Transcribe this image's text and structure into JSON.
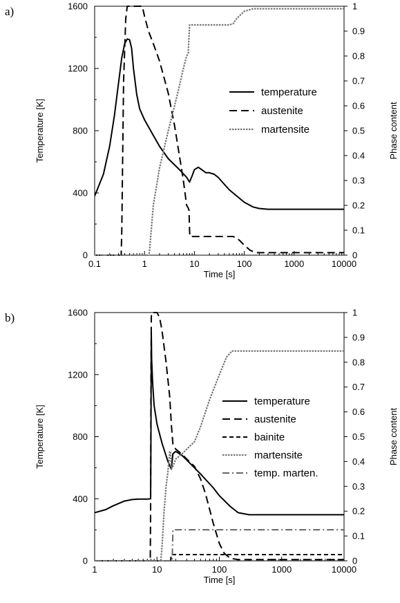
{
  "chart_data": [
    {
      "type": "line",
      "panel_label": "a)",
      "xlabel": "Time [s]",
      "ylabel": "Temperature [K]",
      "y2label": "Phase content",
      "xscale": "log",
      "xlim": [
        0.1,
        10000
      ],
      "ylim": [
        0,
        1600
      ],
      "y2lim": [
        0,
        1
      ],
      "x_ticks": [
        "0.1",
        "1",
        "10",
        "100",
        "1000",
        "10000"
      ],
      "y_ticks": [
        "0",
        "400",
        "800",
        "1200",
        "1600"
      ],
      "y2_ticks": [
        "0",
        "0.1",
        "0.2",
        "0.3",
        "0.4",
        "0.5",
        "0.6",
        "0.7",
        "0.8",
        "0.9",
        "1"
      ],
      "legend_position": "center-right",
      "series": [
        {
          "name": "temperature",
          "axis": "left",
          "style": "solid",
          "color": "#000000",
          "x": [
            0.1,
            0.15,
            0.2,
            0.25,
            0.3,
            0.35,
            0.4,
            0.45,
            0.5,
            0.55,
            0.6,
            0.7,
            0.8,
            1,
            1.5,
            2,
            3,
            5,
            7,
            8,
            9,
            10,
            12,
            14,
            17,
            20,
            25,
            30,
            50,
            100,
            150,
            200,
            300,
            500,
            1000,
            10000
          ],
          "y": [
            380,
            520,
            700,
            900,
            1100,
            1270,
            1360,
            1390,
            1385,
            1330,
            1200,
            1030,
            940,
            870,
            770,
            700,
            620,
            550,
            500,
            470,
            510,
            550,
            565,
            550,
            530,
            530,
            520,
            500,
            420,
            340,
            310,
            300,
            295,
            295,
            295,
            295
          ]
        },
        {
          "name": "austenite",
          "axis": "right",
          "style": "dashed",
          "color": "#000000",
          "x": [
            0.1,
            0.34,
            0.35,
            0.38,
            0.42,
            0.45,
            0.9,
            1,
            1.2,
            1.5,
            2,
            3,
            4,
            5,
            6,
            7,
            7.5,
            7.8,
            8,
            8.1,
            20,
            60,
            80,
            100,
            130,
            170,
            10000
          ],
          "y": [
            0,
            0,
            0.1,
            0.7,
            0.95,
            1,
            1,
            0.96,
            0.9,
            0.85,
            0.78,
            0.65,
            0.52,
            0.4,
            0.3,
            0.2,
            0.19,
            0.18,
            0.1,
            0.075,
            0.075,
            0.075,
            0.06,
            0.04,
            0.02,
            0.01,
            0.01
          ]
        },
        {
          "name": "martensite",
          "axis": "right",
          "style": "dotted",
          "color": "#777777",
          "x": [
            0.1,
            1.2,
            1.25,
            1.5,
            2,
            3,
            4,
            5,
            6,
            7,
            7.5,
            8,
            9,
            20,
            50,
            60,
            70,
            100,
            150,
            10000
          ],
          "y": [
            0,
            0,
            0.01,
            0.2,
            0.35,
            0.5,
            0.6,
            0.68,
            0.75,
            0.8,
            0.81,
            0.925,
            0.925,
            0.925,
            0.925,
            0.93,
            0.95,
            0.98,
            0.99,
            0.99
          ]
        }
      ]
    },
    {
      "type": "line",
      "panel_label": "b)",
      "xlabel": "Time [s]",
      "ylabel": "Temperature [K]",
      "y2label": "Phase content",
      "xscale": "log",
      "xlim": [
        1,
        10000
      ],
      "ylim": [
        0,
        1600
      ],
      "y2lim": [
        0,
        1
      ],
      "x_ticks": [
        "1",
        "10",
        "100",
        "1000",
        "10000"
      ],
      "y_ticks": [
        "0",
        "400",
        "800",
        "1200",
        "1600"
      ],
      "y2_ticks": [
        "0",
        "0.1",
        "0.2",
        "0.3",
        "0.4",
        "0.5",
        "0.6",
        "0.7",
        "0.8",
        "0.9",
        "1"
      ],
      "legend_position": "center-right",
      "series": [
        {
          "name": "temperature",
          "axis": "left",
          "style": "solid",
          "color": "#000000",
          "x": [
            1,
            1.5,
            2,
            3,
            4,
            5,
            6,
            7,
            7.9,
            8,
            8.1,
            8.2,
            8.5,
            9,
            10,
            12,
            15,
            17,
            18,
            20,
            25,
            30,
            50,
            80,
            100,
            150,
            200,
            300,
            1000,
            10000
          ],
          "y": [
            310,
            330,
            355,
            385,
            395,
            398,
            398,
            398,
            400,
            800,
            1470,
            1300,
            1150,
            1000,
            880,
            760,
            640,
            590,
            690,
            705,
            680,
            650,
            560,
            470,
            420,
            350,
            310,
            297,
            297,
            297
          ]
        },
        {
          "name": "austenite",
          "axis": "right",
          "style": "longdash",
          "color": "#000000",
          "x": [
            1,
            7.8,
            7.9,
            8,
            8.1,
            8.2,
            9,
            10,
            11,
            12,
            14,
            16,
            17,
            18,
            20,
            25,
            30,
            40,
            50,
            60,
            80,
            100,
            120,
            150,
            200,
            10000
          ],
          "y": [
            0,
            0,
            0.2,
            0.7,
            0.98,
            1,
            1,
            1,
            0.98,
            0.93,
            0.8,
            0.66,
            0.55,
            0.47,
            0.45,
            0.43,
            0.41,
            0.38,
            0.33,
            0.27,
            0.15,
            0.07,
            0.03,
            0.01,
            0.005,
            0.005
          ]
        },
        {
          "name": "bainite",
          "axis": "right",
          "style": "shortdash",
          "color": "#000000",
          "x": [
            1,
            16.5,
            17,
            10000
          ],
          "y": [
            0,
            0,
            0.025,
            0.025
          ]
        },
        {
          "name": "martensite",
          "axis": "right",
          "style": "dotted",
          "color": "#777777",
          "x": [
            1,
            11.5,
            12,
            13,
            14,
            15,
            16,
            16.5,
            17,
            18,
            20,
            25,
            30,
            40,
            50,
            70,
            100,
            130,
            160,
            200,
            10000
          ],
          "y": [
            0,
            0,
            0.05,
            0.2,
            0.3,
            0.36,
            0.44,
            0.44,
            0.37,
            0.38,
            0.41,
            0.43,
            0.45,
            0.48,
            0.54,
            0.65,
            0.75,
            0.82,
            0.845,
            0.845,
            0.845
          ]
        },
        {
          "name": "temp. marten.",
          "axis": "right",
          "style": "dashdot",
          "color": "#666666",
          "x": [
            1,
            17.5,
            18,
            10000
          ],
          "y": [
            0,
            0,
            0.125,
            0.125
          ]
        }
      ]
    }
  ]
}
